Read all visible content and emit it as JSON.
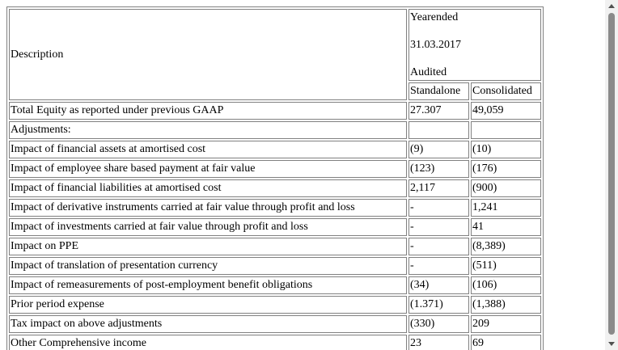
{
  "header": {
    "description": "Description",
    "period_line1": "Yearended",
    "period_line2": "31.03.2017",
    "period_line3": "Audited",
    "col_standalone": "Standalone",
    "col_consolidated": "Consolidated"
  },
  "rows": [
    {
      "description": "Total Equity as reported under previous GAAP",
      "standalone": "27.307",
      "consolidated": "49,059"
    },
    {
      "description": "Adjustments:",
      "standalone": "",
      "consolidated": ""
    },
    {
      "description": "Impact of financial assets at amortised cost",
      "standalone": "(9)",
      "consolidated": "(10)"
    },
    {
      "description": "Impact of employee share based payment at fair value",
      "standalone": "(123)",
      "consolidated": "(176)"
    },
    {
      "description": "Impact of financial liabilities at amortised cost",
      "standalone": "2,117",
      "consolidated": "(900)"
    },
    {
      "description": "Impact of derivative instruments carried at fair value through profit and loss",
      "standalone": "-",
      "consolidated": "1,241"
    },
    {
      "description": "Impact of investments carried at fair value through profit and loss",
      "standalone": "-",
      "consolidated": "41"
    },
    {
      "description": "Impact on PPE",
      "standalone": "-",
      "consolidated": "(8,389)"
    },
    {
      "description": "Impact of translation of presentation currency",
      "standalone": "-",
      "consolidated": "(511)"
    },
    {
      "description": "Impact of remeasurements of post-employment benefit obligations",
      "standalone": "(34)",
      "consolidated": "(106)"
    },
    {
      "description": "Prior period expense",
      "standalone": "(1.371)",
      "consolidated": "(1,388)"
    },
    {
      "description": "Tax impact on above adjustments",
      "standalone": "(330)",
      "consolidated": "209"
    },
    {
      "description": "Other Comprehensive income",
      "standalone": "23",
      "consolidated": "69"
    }
  ]
}
